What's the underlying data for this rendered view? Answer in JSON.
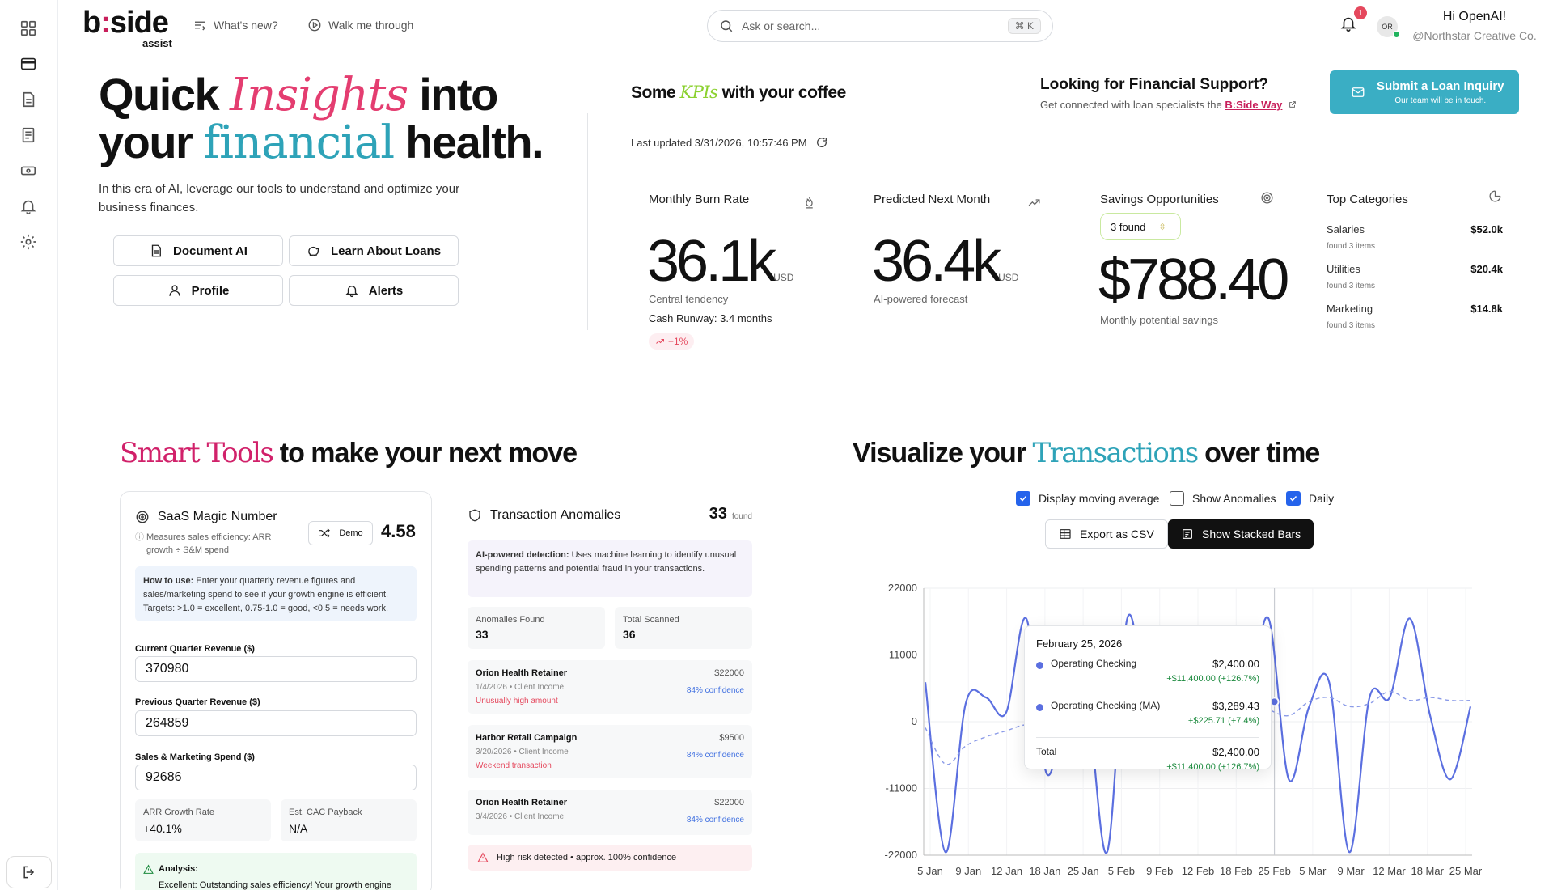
{
  "header": {
    "logo_main_a": "b",
    "logo_main_colon": ":",
    "logo_main_b": "side",
    "logo_sub": "assist",
    "whats_new": "What's new?",
    "walk_through": "Walk me through",
    "search_placeholder": "Ask or search...",
    "search_shortcut": "⌘ K",
    "notification_count": "1",
    "avatar_initials": "OR",
    "greeting": "Hi OpenAI!",
    "org": "@Northstar Creative Co."
  },
  "sidebar": {
    "icons": [
      "dashboard-icon",
      "card-icon",
      "document-icon",
      "report-icon",
      "money-icon",
      "bell-icon",
      "gear-icon"
    ],
    "logout_icon": "logout-icon"
  },
  "hero": {
    "title_a": "Quick ",
    "title_accent1": "Insights",
    "title_b": " into",
    "title_c": "your ",
    "title_accent2": "financial",
    "title_d": " health.",
    "description": "In this era of AI, leverage our tools to understand and optimize your business finances.",
    "buttons": {
      "document_ai": "Document AI",
      "learn_loans": "Learn About Loans",
      "profile": "Profile",
      "alerts": "Alerts"
    }
  },
  "kpis": {
    "title_a": "Some ",
    "title_accent": "KPIs",
    "title_b": " with your coffee",
    "last_updated": "Last updated 3/31/2026, 10:57:46 PM",
    "burn": {
      "label": "Monthly Burn Rate",
      "value": "36.1k",
      "unit": "USD",
      "note": "Central tendency",
      "runway": "Cash Runway: 3.4 months",
      "change": "+1%"
    },
    "predicted": {
      "label": "Predicted Next Month",
      "value": "36.4k",
      "unit": "USD",
      "note": "AI-powered forecast"
    },
    "savings": {
      "label": "Savings Opportunities",
      "found": "3 found",
      "value": "$788.40",
      "note": "Monthly potential savings"
    },
    "top_categories": {
      "label": "Top Categories",
      "items": [
        {
          "name": "Salaries",
          "value": "$52.0k",
          "found": "found 3 items"
        },
        {
          "name": "Utilities",
          "value": "$20.4k",
          "found": "found 3 items"
        },
        {
          "name": "Marketing",
          "value": "$14.8k",
          "found": "found 3 items"
        }
      ]
    }
  },
  "loan": {
    "title": "Looking for Financial Support?",
    "sub": "Get connected with loan specialists the",
    "link": "B:Side Way",
    "button_main": "Submit a Loan Inquiry",
    "button_sub": "Our team will be in touch."
  },
  "smart_tools": {
    "title_accent": "Smart Tools",
    "title_rest": " to make your next move",
    "saas": {
      "title": "SaaS Magic Number",
      "measures": "Measures sales efficiency: ARR growth ÷ S&M spend",
      "demo": "Demo",
      "score": "4.58",
      "howto_label": "How to use:",
      "howto": " Enter your quarterly revenue figures and sales/marketing spend to see if your growth engine is efficient. Targets: >1.0 = excellent, 0.75-1.0 = good, <0.5 = needs work.",
      "current_label": "Current Quarter Revenue ($)",
      "current_value": "370980",
      "previous_label": "Previous Quarter Revenue ($)",
      "previous_value": "264859",
      "sm_label": "Sales & Marketing Spend ($)",
      "sm_value": "92686",
      "arr_label": "ARR Growth Rate",
      "arr_value": "+40.1%",
      "cac_label": "Est. CAC Payback",
      "cac_value": "N/A",
      "analysis_label": "Analysis:",
      "analysis_text": "Excellent: Outstanding sales efficiency! Your growth engine"
    },
    "anomalies": {
      "title": "Transaction Anomalies",
      "count": "33",
      "count_label": "found",
      "ai_label": "AI-powered detection:",
      "ai_text": " Uses machine learning to identify unusual spending patterns and potential fraud in your transactions.",
      "found_label": "Anomalies Found",
      "found_value": "33",
      "scanned_label": "Total Scanned",
      "scanned_value": "36",
      "rows": [
        {
          "name": "Orion Health Retainer",
          "amount": "$22000",
          "meta": "1/4/2026 • Client Income",
          "confidence": "84% confidence",
          "warning": "Unusually high amount"
        },
        {
          "name": "Harbor Retail Campaign",
          "amount": "$9500",
          "meta": "3/20/2026 • Client Income",
          "confidence": "84% confidence",
          "warning": "Weekend transaction"
        },
        {
          "name": "Orion Health Retainer",
          "amount": "$22000",
          "meta": "3/4/2026 • Client Income",
          "confidence": "84% confidence",
          "warning": ""
        }
      ],
      "risk": "High risk detected • approx. 100% confidence"
    }
  },
  "visualize": {
    "title_a": "Visualize your ",
    "title_accent": "Transactions",
    "title_b": " over time",
    "controls": {
      "moving_average": {
        "label": "Display moving average",
        "checked": true
      },
      "anomalies": {
        "label": "Show Anomalies",
        "checked": false
      },
      "daily": {
        "label": "Daily",
        "checked": true
      },
      "export": "Export as CSV",
      "stacked": "Show Stacked Bars"
    },
    "tooltip": {
      "date": "February 25, 2026",
      "rows": [
        {
          "name": "Operating Checking",
          "value": "$2,400.00",
          "change": "+$11,400.00 (+126.7%)"
        },
        {
          "name": "Operating Checking (MA)",
          "value": "$3,289.43",
          "change": "+$225.71 (+7.4%)"
        }
      ],
      "total_label": "Total",
      "total_value": "$2,400.00",
      "total_change": "+$11,400.00 (+126.7%)"
    }
  },
  "chart_data": {
    "type": "line",
    "y_ticks": [
      "22000",
      "11000",
      "0",
      "-11000",
      "-22000"
    ],
    "ylim": [
      -22000,
      22000
    ],
    "x_ticks": [
      "5 Jan",
      "9 Jan",
      "12 Jan",
      "18 Jan",
      "25 Jan",
      "5 Feb",
      "9 Feb",
      "12 Feb",
      "18 Feb",
      "25 Feb",
      "5 Mar",
      "9 Mar",
      "12 Mar",
      "18 Mar",
      "25 Mar"
    ],
    "series": [
      {
        "name": "Operating Checking",
        "color": "#5b6fe0",
        "values": [
          6500,
          -21500,
          3000,
          4000,
          1500,
          17000,
          -8500,
          2500,
          3500,
          -21500,
          17000,
          3000,
          6500,
          -4000,
          -3500,
          6500,
          4000,
          17000,
          -9500,
          2400,
          6500,
          -21500,
          4000,
          4000,
          17000,
          1000,
          -9500,
          2500
        ]
      },
      {
        "name": "Operating Checking (MA)",
        "color": "#8a9ae8",
        "dashed": true,
        "values": [
          -1000,
          -7000,
          -4000,
          -2500,
          -1500,
          -500,
          -1000,
          0,
          1500,
          1500,
          2000,
          2500,
          3000,
          2000,
          500,
          2000,
          3500,
          2000,
          1000,
          3289,
          4000,
          2500,
          3000,
          5000,
          3500,
          4000,
          3500,
          3500
        ]
      }
    ],
    "grid": true
  }
}
